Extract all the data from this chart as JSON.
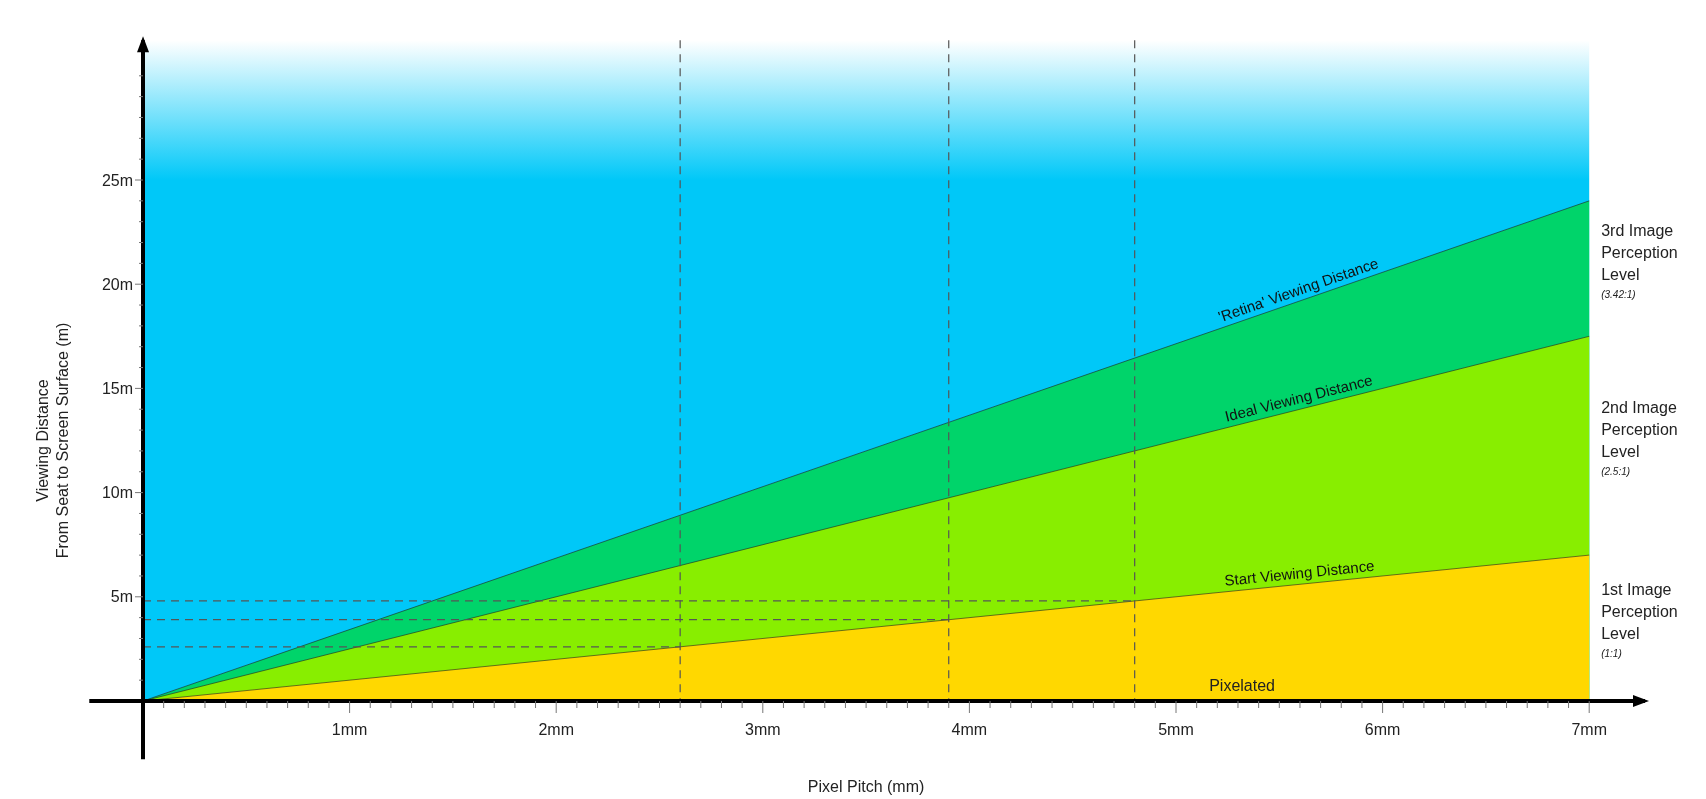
{
  "chart_data": {
    "type": "area",
    "xlabel": "Pixel Pitch (mm)",
    "ylabel": "Viewing Distance\nFrom Seat to Screen Surface  (m)",
    "xlim": [
      -0.26,
      7.27
    ],
    "ylim": [
      -2.8,
      31.7
    ],
    "xticks": [
      {
        "value": 0.1,
        "label": null
      },
      {
        "value": 0.2,
        "label": null
      },
      {
        "value": 0.3,
        "label": null
      },
      {
        "value": 0.4,
        "label": null
      },
      {
        "value": 0.5,
        "label": null
      },
      {
        "value": 0.6,
        "label": null
      },
      {
        "value": 0.7,
        "label": null
      },
      {
        "value": 0.8,
        "label": null
      },
      {
        "value": 0.9,
        "label": null
      },
      {
        "value": 1,
        "label": "1mm"
      },
      {
        "value": 1.1,
        "label": null
      },
      {
        "value": 1.2,
        "label": null
      },
      {
        "value": 1.3,
        "label": null
      },
      {
        "value": 1.4,
        "label": null
      },
      {
        "value": 1.5,
        "label": null
      },
      {
        "value": 1.6,
        "label": null
      },
      {
        "value": 1.7,
        "label": null
      },
      {
        "value": 1.8,
        "label": null
      },
      {
        "value": 1.9,
        "label": null
      },
      {
        "value": 2,
        "label": "2mm"
      },
      {
        "value": 2.1,
        "label": null
      },
      {
        "value": 2.2,
        "label": null
      },
      {
        "value": 2.3,
        "label": null
      },
      {
        "value": 2.4,
        "label": null
      },
      {
        "value": 2.5,
        "label": null
      },
      {
        "value": 2.6,
        "label": null
      },
      {
        "value": 2.7,
        "label": null
      },
      {
        "value": 2.8,
        "label": null
      },
      {
        "value": 2.9,
        "label": null
      },
      {
        "value": 3,
        "label": "3mm"
      },
      {
        "value": 3.1,
        "label": null
      },
      {
        "value": 3.2,
        "label": null
      },
      {
        "value": 3.3,
        "label": null
      },
      {
        "value": 3.4,
        "label": null
      },
      {
        "value": 3.5,
        "label": null
      },
      {
        "value": 3.6,
        "label": null
      },
      {
        "value": 3.7,
        "label": null
      },
      {
        "value": 3.8,
        "label": null
      },
      {
        "value": 3.9,
        "label": null
      },
      {
        "value": 4,
        "label": "4mm"
      },
      {
        "value": 4.1,
        "label": null
      },
      {
        "value": 4.2,
        "label": null
      },
      {
        "value": 4.3,
        "label": null
      },
      {
        "value": 4.4,
        "label": null
      },
      {
        "value": 4.5,
        "label": null
      },
      {
        "value": 4.6,
        "label": null
      },
      {
        "value": 4.7,
        "label": null
      },
      {
        "value": 4.8,
        "label": null
      },
      {
        "value": 4.9,
        "label": null
      },
      {
        "value": 5,
        "label": "5mm"
      },
      {
        "value": 5.1,
        "label": null
      },
      {
        "value": 5.2,
        "label": null
      },
      {
        "value": 5.3,
        "label": null
      },
      {
        "value": 5.4,
        "label": null
      },
      {
        "value": 5.5,
        "label": null
      },
      {
        "value": 5.6,
        "label": null
      },
      {
        "value": 5.7,
        "label": null
      },
      {
        "value": 5.8,
        "label": null
      },
      {
        "value": 5.9,
        "label": null
      },
      {
        "value": 6,
        "label": "6mm"
      },
      {
        "value": 6.1,
        "label": null
      },
      {
        "value": 6.2,
        "label": null
      },
      {
        "value": 6.3,
        "label": null
      },
      {
        "value": 6.4,
        "label": null
      },
      {
        "value": 6.5,
        "label": null
      },
      {
        "value": 6.6,
        "label": null
      },
      {
        "value": 6.7,
        "label": null
      },
      {
        "value": 6.8,
        "label": null
      },
      {
        "value": 6.9,
        "label": null
      },
      {
        "value": 7,
        "label": "7mm"
      }
    ],
    "yticks": [
      {
        "value": 1,
        "label": null
      },
      {
        "value": 2,
        "label": null
      },
      {
        "value": 3,
        "label": null
      },
      {
        "value": 4,
        "label": null
      },
      {
        "value": 5,
        "label": "5m"
      },
      {
        "value": 6,
        "label": null
      },
      {
        "value": 7,
        "label": null
      },
      {
        "value": 8,
        "label": null
      },
      {
        "value": 9,
        "label": null
      },
      {
        "value": 10,
        "label": "10m"
      },
      {
        "value": 11,
        "label": null
      },
      {
        "value": 12,
        "label": null
      },
      {
        "value": 13,
        "label": null
      },
      {
        "value": 14,
        "label": null
      },
      {
        "value": 15,
        "label": "15m"
      },
      {
        "value": 16,
        "label": null
      },
      {
        "value": 17,
        "label": null
      },
      {
        "value": 18,
        "label": null
      },
      {
        "value": 19,
        "label": null
      },
      {
        "value": 20,
        "label": "20m"
      },
      {
        "value": 21,
        "label": null
      },
      {
        "value": 22,
        "label": null
      },
      {
        "value": 23,
        "label": null
      },
      {
        "value": 24,
        "label": null
      },
      {
        "value": 25,
        "label": "25m"
      },
      {
        "value": 26,
        "label": null
      },
      {
        "value": 27,
        "label": null
      },
      {
        "value": 28,
        "label": null
      },
      {
        "value": 29,
        "label": null
      },
      {
        "value": 30,
        "label": null
      }
    ],
    "bands": [
      {
        "axis": "y",
        "from": 0,
        "to": 25,
        "color": "#00c8f8"
      },
      {
        "axis": "y",
        "from": 25,
        "to": 31.7,
        "color": "#ffffff"
      }
    ],
    "series": [
      {
        "name": "'Retina' Viewing Distance",
        "color": "#00d46a",
        "x": [
          0,
          7
        ],
        "values": [
          0,
          24
        ]
      },
      {
        "name": "Ideal Viewing Distance",
        "color": "#88ee00",
        "x": [
          0,
          7
        ],
        "values": [
          0,
          17.5
        ]
      },
      {
        "name": "Start Viewing Distance",
        "color": "#ffd800",
        "x": [
          0,
          7
        ],
        "values": [
          0,
          7
        ]
      },
      {
        "type": "line",
        "line_style": "dashed",
        "color": "#555555",
        "x": [
          0,
          2.6
        ],
        "values": [
          2.6,
          2.6
        ]
      },
      {
        "type": "line",
        "line_style": "dashed",
        "color": "#555555",
        "x": [
          0,
          3.9
        ],
        "values": [
          3.9,
          3.9
        ]
      },
      {
        "type": "line",
        "line_style": "dashed",
        "color": "#555555",
        "x": [
          0,
          4.8
        ],
        "values": [
          4.8,
          4.8
        ]
      }
    ],
    "ref_lines": [
      {
        "axis": "x",
        "value": 2.6,
        "color": "#555555",
        "line_style": "dashed"
      },
      {
        "axis": "x",
        "value": 3.9,
        "color": "#555555",
        "line_style": "dashed"
      },
      {
        "axis": "x",
        "value": 4.8,
        "color": "#555555",
        "line_style": "dashed"
      }
    ],
    "annotations": [
      "Pixelated",
      "3rd Image\nPerception\nLevel\n$_{(3.42:1)}$",
      "2nd Image\nPerception\nLevel\n$_{(2.5:1)}$",
      "1st Image\nPerception\nLevel\n$_{(1:1)}$"
    ],
    "grid": false,
    "legend": false,
    "marker": "none"
  }
}
